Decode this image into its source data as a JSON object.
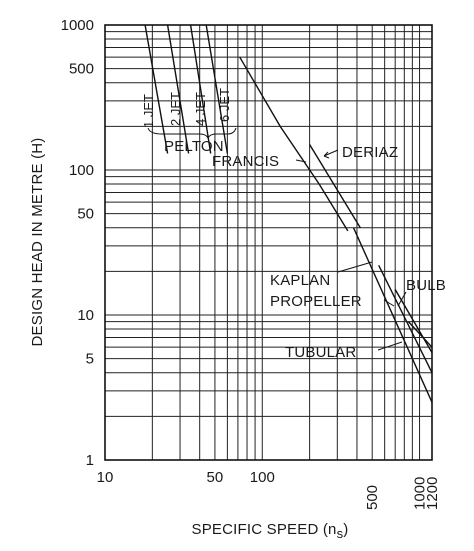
{
  "chart_data": {
    "type": "line",
    "xlabel": "SPECIFIC SPEED (n",
    "xlabel_sub": "s",
    "xlabel_end": ")",
    "ylabel": "DESIGN HEAD IN METRE (H)",
    "x_scale": "log",
    "y_scale": "log",
    "xlim": [
      10,
      1200
    ],
    "ylim": [
      1,
      1000
    ],
    "grid": true,
    "x_ticks": [
      {
        "value": 10,
        "label": "10",
        "rotated": false
      },
      {
        "value": 50,
        "label": "50",
        "rotated": false
      },
      {
        "value": 100,
        "label": "100",
        "rotated": false
      },
      {
        "value": 500,
        "label": "500",
        "rotated": true
      },
      {
        "value": 1000,
        "label": "1000",
        "rotated": true
      },
      {
        "value": 1200,
        "label": "1200",
        "rotated": true
      }
    ],
    "y_ticks": [
      {
        "value": 1000,
        "label": "1000"
      },
      {
        "value": 500,
        "label": "500"
      },
      {
        "value": 100,
        "label": "100"
      },
      {
        "value": 50,
        "label": "50"
      },
      {
        "value": 10,
        "label": "10"
      },
      {
        "value": 5,
        "label": "5"
      },
      {
        "value": 1,
        "label": "1"
      }
    ],
    "series": [
      {
        "name": "1 JET",
        "points": [
          [
            18,
            1000
          ],
          [
            25,
            130
          ]
        ]
      },
      {
        "name": "2 JET",
        "points": [
          [
            25,
            1000
          ],
          [
            34,
            130
          ]
        ]
      },
      {
        "name": "4 JET",
        "points": [
          [
            35,
            1000
          ],
          [
            47,
            130
          ]
        ]
      },
      {
        "name": "6 JET",
        "points": [
          [
            44,
            1000
          ],
          [
            60,
            130
          ]
        ]
      },
      {
        "name": "FRANCIS",
        "points": [
          [
            72,
            600
          ],
          [
            130,
            200
          ],
          [
            230,
            80
          ],
          [
            350,
            38
          ]
        ]
      },
      {
        "name": "DERIAZ",
        "points": [
          [
            200,
            150
          ],
          [
            420,
            40
          ]
        ]
      },
      {
        "name": "KAPLAN",
        "points": [
          [
            380,
            40
          ],
          [
            1200,
            2.5
          ]
        ]
      },
      {
        "name": "PROPELLER",
        "points": [
          [
            550,
            22
          ],
          [
            1200,
            4
          ]
        ]
      },
      {
        "name": "BULB",
        "points": [
          [
            700,
            15
          ],
          [
            1200,
            5.5
          ]
        ]
      },
      {
        "name": "TUBULAR",
        "points": [
          [
            850,
            9
          ],
          [
            1200,
            6
          ]
        ]
      }
    ],
    "annotations": [
      {
        "text": "PELTON"
      },
      {
        "text": "FRANCIS"
      },
      {
        "text": "DERIAZ"
      },
      {
        "text": "KAPLAN"
      },
      {
        "text": "PROPELLER"
      },
      {
        "text": "BULB"
      },
      {
        "text": "TUBULAR"
      }
    ]
  }
}
